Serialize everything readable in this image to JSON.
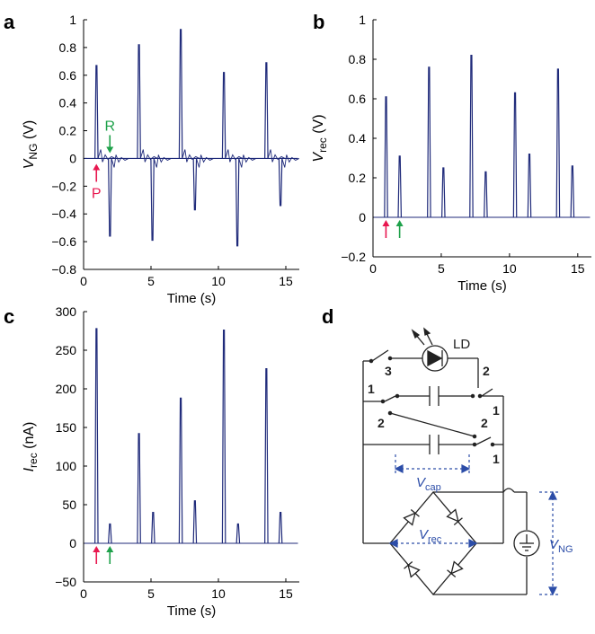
{
  "panels": {
    "a": "a",
    "b": "b",
    "c": "c",
    "d": "d"
  },
  "colors": {
    "trace": "#1f2a7a",
    "press_arrow": "#e8174f",
    "release_arrow": "#1ea14a",
    "circuit": "#222222",
    "annotation": "#2c4da8"
  },
  "chart_data": [
    {
      "panel": "a",
      "type": "line",
      "xlabel": "Time (s)",
      "ylabel_main": "V",
      "ylabel_sub": "NG",
      "ylabel_unit": " (V)",
      "xlim": [
        0,
        16
      ],
      "ylim": [
        -0.8,
        1.0
      ],
      "xticks": [
        0,
        5,
        10,
        15
      ],
      "yticks": [
        -0.8,
        -0.6,
        -0.4,
        -0.2,
        0,
        0.2,
        0.4,
        0.6,
        0.8,
        1
      ],
      "ytick_labels": [
        "−0.8",
        "−0.6",
        "−0.4",
        "−0.2",
        "0",
        "0.2",
        "0.4",
        "0.6",
        "0.8",
        "1"
      ],
      "xtick_labels": [
        "0",
        "5",
        "10",
        "15"
      ],
      "baseline": 0,
      "spikes": [
        {
          "x": 0.95,
          "y": 0.67,
          "kind": "press"
        },
        {
          "x": 1.95,
          "y": -0.56,
          "kind": "release"
        },
        {
          "x": 4.1,
          "y": 0.82,
          "kind": "press"
        },
        {
          "x": 5.1,
          "y": -0.59,
          "kind": "release"
        },
        {
          "x": 7.2,
          "y": 0.93,
          "kind": "press"
        },
        {
          "x": 8.25,
          "y": -0.37,
          "kind": "release"
        },
        {
          "x": 10.4,
          "y": 0.62,
          "kind": "press"
        },
        {
          "x": 11.4,
          "y": -0.63,
          "kind": "release"
        },
        {
          "x": 13.55,
          "y": 0.69,
          "kind": "press"
        },
        {
          "x": 14.6,
          "y": -0.34,
          "kind": "release"
        }
      ],
      "annotations": [
        {
          "label": "R",
          "x": 1.95,
          "y": 0.05,
          "dir": "down",
          "color": "release"
        },
        {
          "label": "P",
          "x": 0.95,
          "y": -0.05,
          "dir": "up",
          "color": "press"
        }
      ]
    },
    {
      "panel": "b",
      "type": "line",
      "xlabel": "Time (s)",
      "ylabel_main": "V",
      "ylabel_sub": "rec",
      "ylabel_unit": " (V)",
      "xlim": [
        0,
        16
      ],
      "ylim": [
        -0.2,
        1.0
      ],
      "xticks": [
        0,
        5,
        10,
        15
      ],
      "yticks": [
        -0.2,
        0,
        0.2,
        0.4,
        0.6,
        0.8,
        1
      ],
      "ytick_labels": [
        "−0.2",
        "0",
        "0.2",
        "0.4",
        "0.6",
        "0.8",
        "1"
      ],
      "xtick_labels": [
        "0",
        "5",
        "10",
        "15"
      ],
      "baseline": 0,
      "spikes": [
        {
          "x": 0.95,
          "y": 0.61
        },
        {
          "x": 1.95,
          "y": 0.31
        },
        {
          "x": 4.1,
          "y": 0.76
        },
        {
          "x": 5.15,
          "y": 0.25
        },
        {
          "x": 7.2,
          "y": 0.82
        },
        {
          "x": 8.25,
          "y": 0.23
        },
        {
          "x": 10.4,
          "y": 0.63
        },
        {
          "x": 11.45,
          "y": 0.32
        },
        {
          "x": 13.55,
          "y": 0.75
        },
        {
          "x": 14.6,
          "y": 0.26
        }
      ],
      "annotations": [
        {
          "label": "",
          "x": 0.95,
          "dir": "up",
          "color": "press"
        },
        {
          "label": "",
          "x": 1.95,
          "dir": "up",
          "color": "release"
        }
      ]
    },
    {
      "panel": "c",
      "type": "line",
      "xlabel": "Time (s)",
      "ylabel_main": "I",
      "ylabel_sub": "rec",
      "ylabel_unit": " (nA)",
      "xlim": [
        0,
        16
      ],
      "ylim": [
        -50,
        300
      ],
      "xticks": [
        0,
        5,
        10,
        15
      ],
      "yticks": [
        -50,
        0,
        50,
        100,
        150,
        200,
        250,
        300
      ],
      "ytick_labels": [
        "−50",
        "0",
        "50",
        "100",
        "150",
        "200",
        "250",
        "300"
      ],
      "xtick_labels": [
        "0",
        "5",
        "10",
        "15"
      ],
      "baseline": 0,
      "spikes": [
        {
          "x": 0.95,
          "y": 278
        },
        {
          "x": 1.95,
          "y": 25
        },
        {
          "x": 4.1,
          "y": 142
        },
        {
          "x": 5.15,
          "y": 40
        },
        {
          "x": 7.2,
          "y": 188
        },
        {
          "x": 8.25,
          "y": 55
        },
        {
          "x": 10.4,
          "y": 276
        },
        {
          "x": 11.45,
          "y": 25
        },
        {
          "x": 13.55,
          "y": 226
        },
        {
          "x": 14.6,
          "y": 40
        }
      ],
      "annotations": [
        {
          "label": "",
          "x": 0.95,
          "dir": "up",
          "color": "press"
        },
        {
          "label": "",
          "x": 1.95,
          "dir": "up",
          "color": "release"
        }
      ]
    }
  ],
  "circuit": {
    "led_label": "LD",
    "switch_labels": [
      "3",
      "2",
      "1",
      "1",
      "2",
      "2",
      "1"
    ],
    "vcap_main": "V",
    "vcap_sub": "cap",
    "vrec_main": "V",
    "vrec_sub": "rec",
    "vng_main": "V",
    "vng_sub": "NG"
  }
}
